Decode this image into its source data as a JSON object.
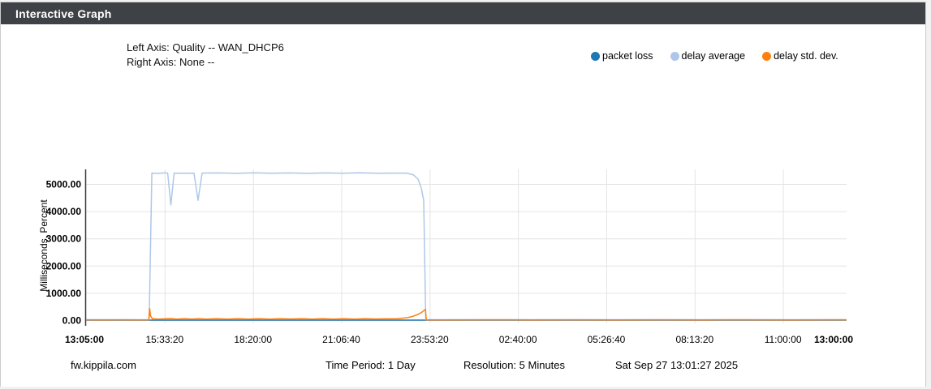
{
  "panel": {
    "title": "Interactive Graph"
  },
  "graph_info": {
    "left_axis": "Left Axis: Quality -- WAN_DHCP6",
    "right_axis": "Right Axis: None --"
  },
  "footer": {
    "hostname": "fw.kippila.com",
    "time_period": "Time Period: 1 Day",
    "resolution": "Resolution: 5 Minutes",
    "timestamp": "Sat Sep 27 13:01:27 2025"
  },
  "chart_data": {
    "type": "line",
    "title": "",
    "ylabel": "Milliseconds, Percent",
    "ylim": [
      0,
      5565
    ],
    "grid": true,
    "legend_position": "top-right",
    "y_ticks": [
      {
        "value": 0,
        "label": "0.00"
      },
      {
        "value": 1000,
        "label": "1000.00"
      },
      {
        "value": 2000,
        "label": "2000.00"
      },
      {
        "value": 3000,
        "label": "3000.00"
      },
      {
        "value": 4000,
        "label": "4000.00"
      },
      {
        "value": 5000,
        "label": "5000.00"
      }
    ],
    "x_domain_seconds": [
      0,
      86100
    ],
    "x_ticks": [
      {
        "s": 0,
        "label": "13:05:00",
        "bold": true
      },
      {
        "s": 8900,
        "label": "15:33:20",
        "bold": false
      },
      {
        "s": 18900,
        "label": "18:20:00",
        "bold": false
      },
      {
        "s": 28900,
        "label": "21:06:40",
        "bold": false
      },
      {
        "s": 38900,
        "label": "23:53:20",
        "bold": false
      },
      {
        "s": 48900,
        "label": "02:40:00",
        "bold": false
      },
      {
        "s": 58900,
        "label": "05:26:40",
        "bold": false
      },
      {
        "s": 68900,
        "label": "08:13:20",
        "bold": false
      },
      {
        "s": 78900,
        "label": "11:00:00",
        "bold": false
      },
      {
        "s": 86100,
        "label": "13:00:00",
        "bold": true
      }
    ],
    "series": [
      {
        "name": "packet loss",
        "color": "#1f77b4",
        "points": [
          [
            0,
            0
          ],
          [
            7150,
            0
          ],
          [
            20000,
            0
          ],
          [
            38460,
            0
          ],
          [
            60000,
            0
          ],
          [
            86100,
            0
          ]
        ]
      },
      {
        "name": "delay average",
        "color": "#aec7e8",
        "points": [
          [
            0,
            15
          ],
          [
            7150,
            15
          ],
          [
            7450,
            5400
          ],
          [
            8200,
            5390
          ],
          [
            9000,
            5410
          ],
          [
            9240,
            5400
          ],
          [
            9600,
            4230
          ],
          [
            9970,
            5400
          ],
          [
            10800,
            5395
          ],
          [
            12220,
            5400
          ],
          [
            12680,
            4400
          ],
          [
            13140,
            5400
          ],
          [
            15000,
            5405
          ],
          [
            17000,
            5390
          ],
          [
            19000,
            5410
          ],
          [
            21000,
            5395
          ],
          [
            23000,
            5405
          ],
          [
            25000,
            5390
          ],
          [
            27000,
            5405
          ],
          [
            29000,
            5395
          ],
          [
            31000,
            5410
          ],
          [
            33000,
            5395
          ],
          [
            35000,
            5400
          ],
          [
            36300,
            5400
          ],
          [
            37030,
            5340
          ],
          [
            37580,
            5180
          ],
          [
            37950,
            4850
          ],
          [
            38230,
            4400
          ],
          [
            38460,
            15
          ],
          [
            40000,
            15
          ],
          [
            86100,
            15
          ]
        ]
      },
      {
        "name": "delay std. dev.",
        "color": "#ff7f0e",
        "points": [
          [
            0,
            12
          ],
          [
            2000,
            9
          ],
          [
            4000,
            12
          ],
          [
            6000,
            10
          ],
          [
            7100,
            12
          ],
          [
            7200,
            430
          ],
          [
            7300,
            160
          ],
          [
            7500,
            55
          ],
          [
            8200,
            35
          ],
          [
            9000,
            48
          ],
          [
            9600,
            58
          ],
          [
            10300,
            35
          ],
          [
            11200,
            50
          ],
          [
            12000,
            40
          ],
          [
            12700,
            55
          ],
          [
            13600,
            38
          ],
          [
            14800,
            52
          ],
          [
            16000,
            40
          ],
          [
            17200,
            55
          ],
          [
            18400,
            40
          ],
          [
            19600,
            50
          ],
          [
            20800,
            38
          ],
          [
            22000,
            52
          ],
          [
            23200,
            42
          ],
          [
            24400,
            50
          ],
          [
            25600,
            38
          ],
          [
            26800,
            50
          ],
          [
            28000,
            40
          ],
          [
            29200,
            52
          ],
          [
            30400,
            40
          ],
          [
            31600,
            50
          ],
          [
            32800,
            42
          ],
          [
            34000,
            48
          ],
          [
            35200,
            55
          ],
          [
            36300,
            85
          ],
          [
            36900,
            130
          ],
          [
            37400,
            185
          ],
          [
            37900,
            265
          ],
          [
            38250,
            350
          ],
          [
            38420,
            395
          ],
          [
            38520,
            12
          ],
          [
            40000,
            10
          ],
          [
            45000,
            12
          ],
          [
            50000,
            9
          ],
          [
            55000,
            12
          ],
          [
            60000,
            10
          ],
          [
            65000,
            12
          ],
          [
            70000,
            9
          ],
          [
            75000,
            12
          ],
          [
            80000,
            10
          ],
          [
            86100,
            11
          ]
        ]
      }
    ]
  }
}
